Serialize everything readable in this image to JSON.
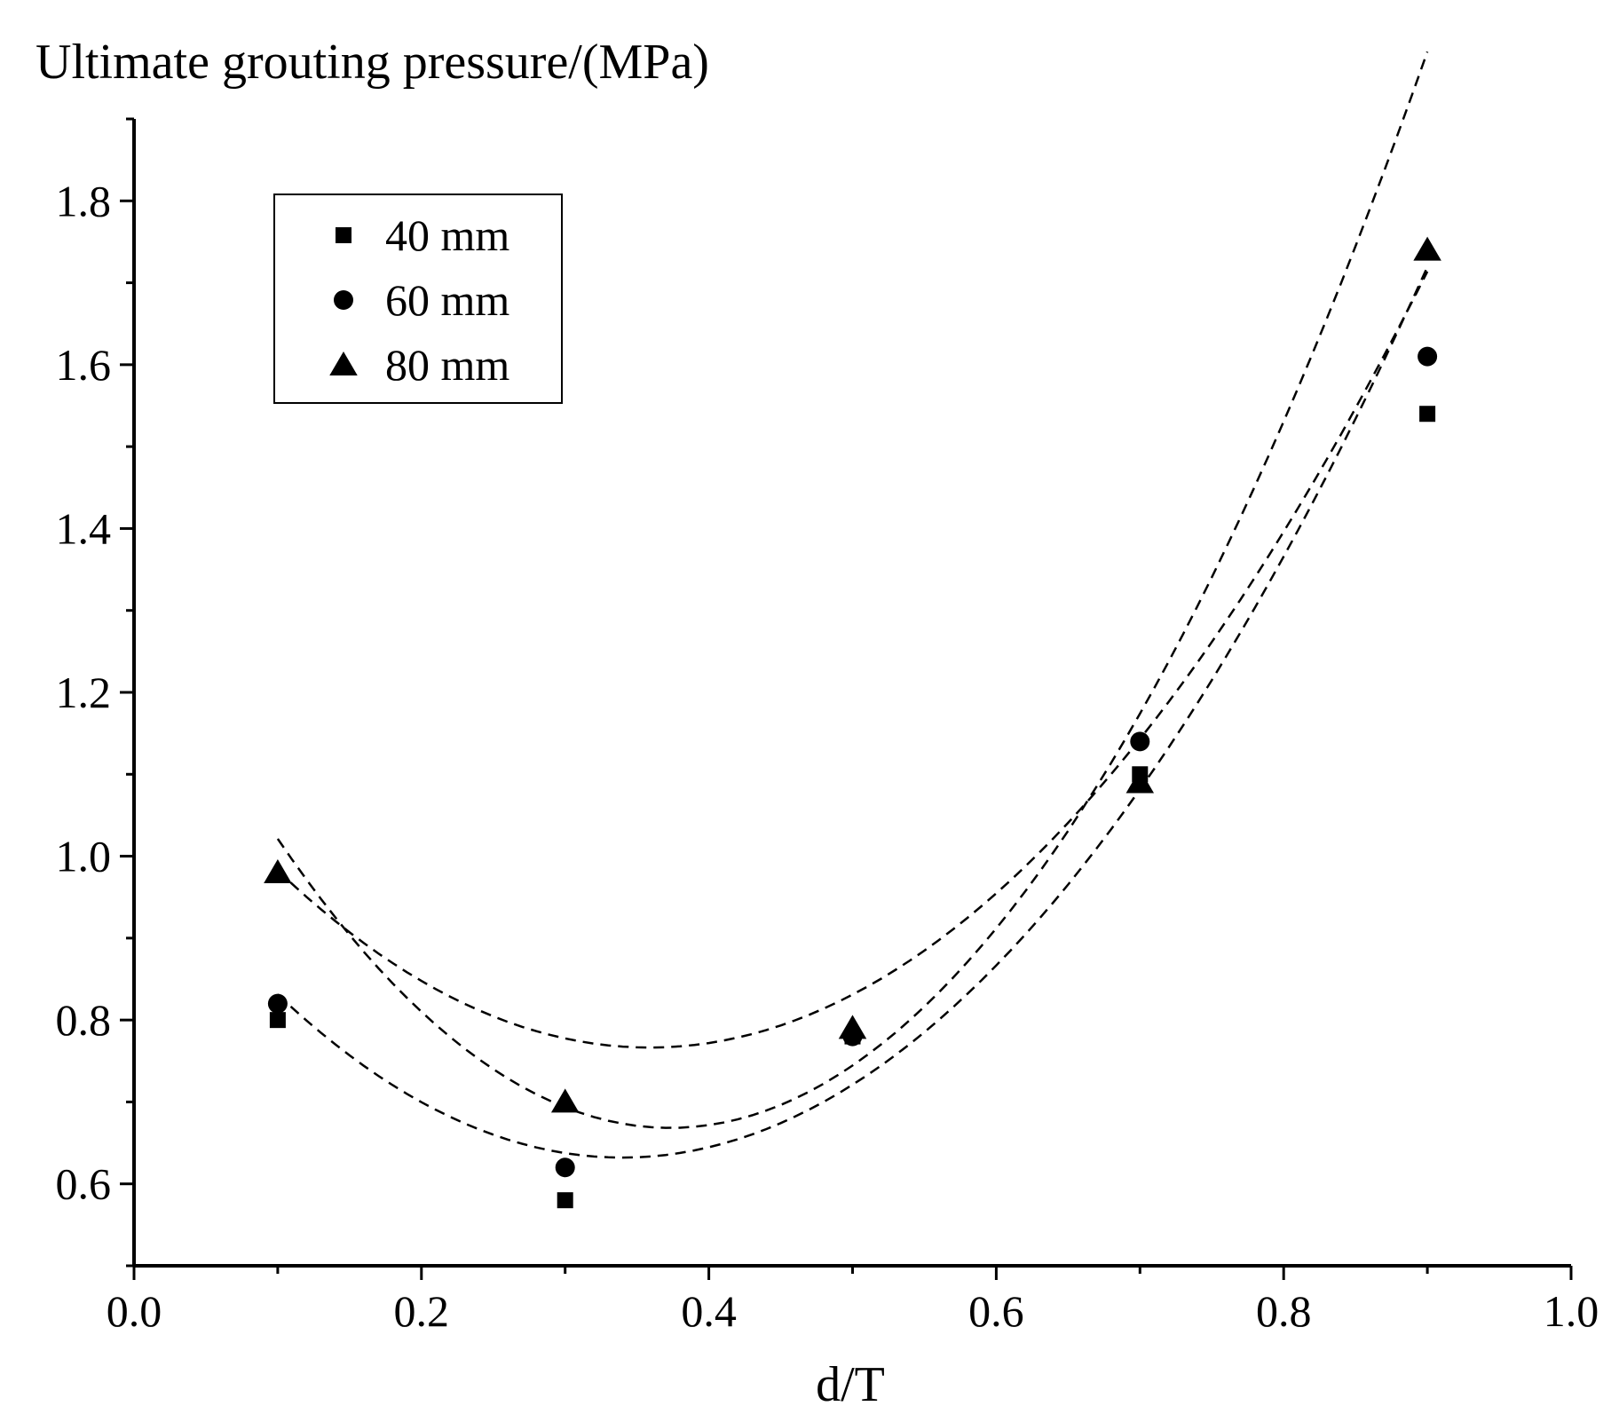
{
  "chart_data": {
    "type": "scatter",
    "title": "",
    "ylabel": "Ultimate grouting pressure/(MPa)",
    "xlabel": "d/T",
    "xlim": [
      0.0,
      1.0
    ],
    "ylim": [
      0.5,
      1.9
    ],
    "x_ticks": [
      0.0,
      0.2,
      0.4,
      0.6,
      0.8,
      1.0
    ],
    "x_tick_labels": [
      "0.0",
      "0.2",
      "0.4",
      "0.6",
      "0.8",
      "1.0"
    ],
    "y_ticks": [
      0.6,
      0.8,
      1.0,
      1.2,
      1.4,
      1.6,
      1.8
    ],
    "y_tick_labels": [
      "0.6",
      "0.8",
      "1.0",
      "1.2",
      "1.4",
      "1.6",
      "1.8"
    ],
    "legend_position": "top-left",
    "fit": "quadratic (dashed)",
    "series": [
      {
        "name": "40 mm",
        "marker": "square",
        "x": [
          0.1,
          0.3,
          0.5,
          0.7,
          0.9
        ],
        "y": [
          0.8,
          0.58,
          0.78,
          1.1,
          1.54
        ],
        "fit_coeffs": [
          1.182,
          -2.318,
          3.232
        ]
      },
      {
        "name": "60 mm",
        "marker": "circle",
        "x": [
          0.1,
          0.3,
          0.5,
          0.7,
          0.9
        ],
        "y": [
          0.82,
          0.62,
          0.78,
          1.14,
          1.61
        ],
        "fit_coeffs": [
          1.032,
          -2.354,
          3.464
        ]
      },
      {
        "name": "80 mm",
        "marker": "triangle",
        "x": [
          0.1,
          0.3,
          0.5,
          0.7,
          0.9
        ],
        "y": [
          0.98,
          0.7,
          0.79,
          1.09,
          1.74
        ],
        "fit_coeffs": [
          1.327,
          -3.531,
          4.732
        ]
      }
    ]
  }
}
